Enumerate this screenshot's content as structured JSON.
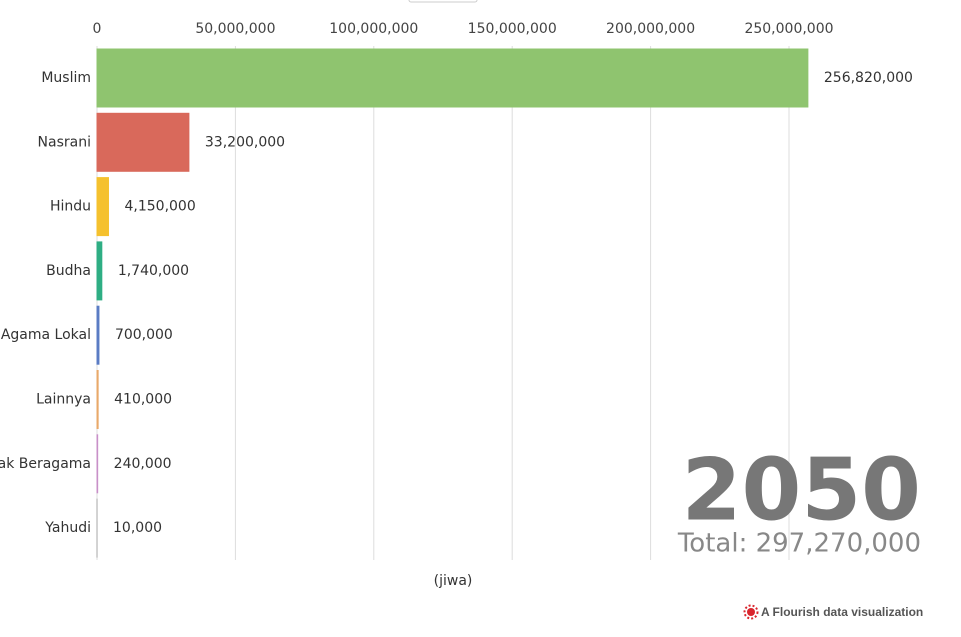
{
  "chart_data": {
    "type": "hbar",
    "categories": [
      "Muslim",
      "Nasrani",
      "Hindu",
      "Budha",
      "Agama Lokal",
      "Lainnya",
      "Tidak Beragama",
      "Yahudi"
    ],
    "values": [
      256820000,
      33200000,
      4150000,
      1740000,
      700000,
      410000,
      240000,
      10000
    ],
    "value_labels": [
      "256,820,000",
      "33,200,000",
      "4,150,000",
      "1,740,000",
      "700,000",
      "410,000",
      "240,000",
      "10,000"
    ],
    "colors": [
      "#8fc46f",
      "#d9695b",
      "#f5c12e",
      "#2fae84",
      "#5b7cc4",
      "#e9a96a",
      "#c890c8",
      "#aaaaaa"
    ],
    "xlim": [
      0,
      250000000
    ],
    "xticks": [
      0,
      {
        "value": 50000000,
        "label": "50,000,000"
      },
      {
        "value": 100000000,
        "label": "100,000,000"
      },
      {
        "value": 150000000,
        "label": "150,000,000"
      },
      {
        "value": 200000000,
        "label": "200,000,000"
      },
      {
        "value": 250000000,
        "label": "250,000,000"
      }
    ],
    "grid": true,
    "x_label": "(jiwa)",
    "year": "2050",
    "total": "Total: 297,270,000",
    "credit": "A Flourish data visualization"
  }
}
